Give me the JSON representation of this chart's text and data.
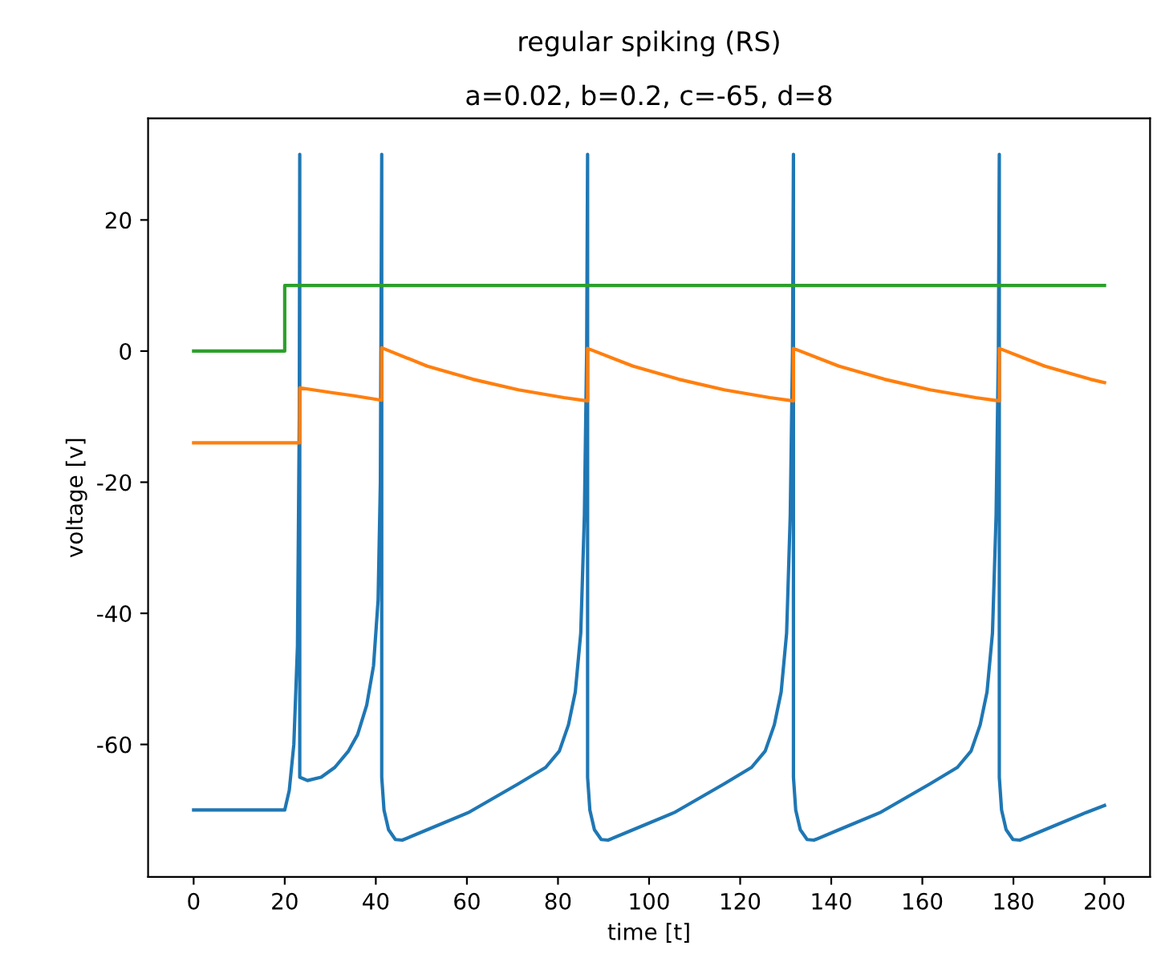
{
  "chart_data": {
    "type": "line",
    "title": "regular spiking (RS)",
    "subtitle": "a=0.02, b=0.2, c=-65, d=8",
    "xlabel": "time [t]",
    "ylabel": "voltage [v]",
    "xlim": [
      -10,
      210
    ],
    "ylim": [
      -80.2,
      35.5
    ],
    "xticks": [
      0,
      20,
      40,
      60,
      80,
      100,
      120,
      140,
      160,
      180,
      200
    ],
    "yticks": [
      -60,
      -40,
      -20,
      0,
      20
    ],
    "grid": false,
    "marker": "none",
    "line_style": "solid",
    "series": [
      {
        "color": "#1f77b4",
        "x": [
          0,
          20,
          21,
          22,
          22.8,
          23.2,
          23.3,
          23.3,
          25,
          28,
          31,
          34,
          36,
          38,
          39.5,
          40.5,
          41,
          41.3,
          41.3,
          41.8,
          42.8,
          44.3,
          45.8,
          51.3,
          60.3,
          71.3,
          77.3,
          80.3,
          82.3,
          83.8,
          85,
          85.8,
          86.3,
          86.5,
          86.5,
          87,
          88,
          89.5,
          91,
          96.5,
          105.5,
          116.5,
          122.5,
          125.5,
          127.5,
          129,
          130.2,
          131,
          131.5,
          131.7,
          131.7,
          132.2,
          133.2,
          134.7,
          136.2,
          141.7,
          150.7,
          161.7,
          167.7,
          170.7,
          172.7,
          174.2,
          175.4,
          176.2,
          176.7,
          176.9,
          176.9,
          177.4,
          178.4,
          179.9,
          181.4,
          186.9,
          195.9,
          200
        ],
        "values": [
          -70,
          -70,
          -67,
          -60,
          -45,
          -10,
          30,
          -65,
          -65.5,
          -65,
          -63.5,
          -61,
          -58.5,
          -54,
          -48,
          -38,
          -20,
          30,
          -65,
          -70,
          -73,
          -74.5,
          -74.6,
          -73,
          -70.4,
          -66,
          -63.5,
          -61,
          -57,
          -52,
          -43,
          -25,
          0,
          30,
          -65,
          -70,
          -73,
          -74.5,
          -74.6,
          -73,
          -70.4,
          -66,
          -63.5,
          -61,
          -57,
          -52,
          -43,
          -25,
          0,
          30,
          -65,
          -70,
          -73,
          -74.5,
          -74.6,
          -73,
          -70.4,
          -66,
          -63.5,
          -61,
          -57,
          -52,
          -43,
          -25,
          0,
          30,
          -65,
          -70,
          -73,
          -74.5,
          -74.6,
          -73,
          -70.4,
          -69.3
        ]
      },
      {
        "color": "#ff7f0e",
        "x": [
          0,
          23.3,
          23.3,
          30,
          35,
          41.3,
          41.3,
          51.3,
          61.3,
          71.3,
          81.3,
          86.5,
          86.5,
          96.5,
          106.5,
          116.5,
          126.5,
          131.7,
          131.7,
          141.7,
          151.7,
          161.7,
          171.7,
          176.9,
          176.9,
          186.9,
          196.9,
          200
        ],
        "values": [
          -14,
          -14,
          -5.6,
          -6.3,
          -6.8,
          -7.5,
          0.5,
          -2.3,
          -4.3,
          -5.9,
          -7.1,
          -7.6,
          0.4,
          -2.3,
          -4.3,
          -5.9,
          -7.1,
          -7.6,
          0.4,
          -2.3,
          -4.3,
          -5.9,
          -7.1,
          -7.6,
          0.4,
          -2.3,
          -4.3,
          -4.8
        ]
      },
      {
        "color": "#2ca02c",
        "x": [
          0,
          20,
          20,
          200
        ],
        "values": [
          0,
          0,
          10,
          10
        ]
      }
    ]
  }
}
